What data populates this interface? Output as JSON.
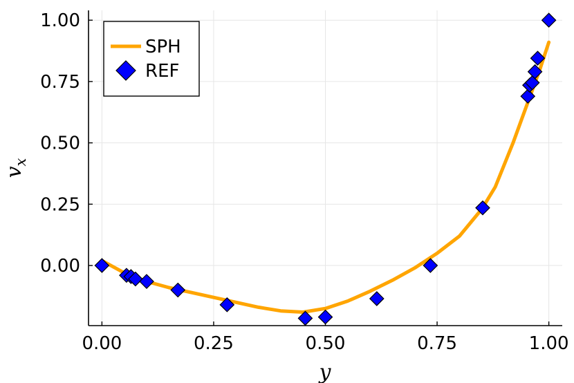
{
  "chart_data": {
    "type": "line",
    "xlabel": "y",
    "ylabel": "v",
    "ylabel_sub": "x",
    "xlim": [
      -0.03,
      1.03
    ],
    "ylim": [
      -0.245,
      1.04
    ],
    "xticks": [
      0.0,
      0.25,
      0.5,
      0.75,
      1.0
    ],
    "xtick_labels": [
      "0.00",
      "0.25",
      "0.50",
      "0.75",
      "1.00"
    ],
    "yticks": [
      0.0,
      0.25,
      0.5,
      0.75,
      1.0
    ],
    "ytick_labels": [
      "0.00",
      "0.25",
      "0.50",
      "0.75",
      "1.00"
    ],
    "grid": true,
    "legend_position": "top-left",
    "series": [
      {
        "name": "SPH",
        "kind": "line",
        "color": "#FFA500",
        "x": [
          0.0,
          0.05,
          0.1,
          0.15,
          0.2,
          0.25,
          0.3,
          0.35,
          0.4,
          0.45,
          0.5,
          0.55,
          0.6,
          0.65,
          0.7,
          0.75,
          0.8,
          0.85,
          0.88,
          0.9,
          0.92,
          0.94,
          0.96,
          0.98,
          1.0
        ],
        "y": [
          0.02,
          -0.03,
          -0.065,
          -0.09,
          -0.11,
          -0.13,
          -0.15,
          -0.17,
          -0.185,
          -0.19,
          -0.175,
          -0.145,
          -0.105,
          -0.06,
          -0.01,
          0.05,
          0.12,
          0.23,
          0.32,
          0.41,
          0.5,
          0.6,
          0.7,
          0.8,
          0.91
        ]
      },
      {
        "name": "REF",
        "kind": "scatter",
        "color": "#0000FF",
        "x": [
          0.0,
          0.055,
          0.065,
          0.075,
          0.1,
          0.17,
          0.28,
          0.455,
          0.5,
          0.615,
          0.735,
          0.852,
          0.953,
          0.957,
          0.963,
          0.969,
          0.975,
          1.0
        ],
        "y": [
          0.0,
          -0.04,
          -0.045,
          -0.055,
          -0.065,
          -0.1,
          -0.16,
          -0.215,
          -0.21,
          -0.135,
          0.0,
          0.235,
          0.69,
          0.735,
          0.745,
          0.79,
          0.845,
          1.0
        ]
      }
    ]
  }
}
